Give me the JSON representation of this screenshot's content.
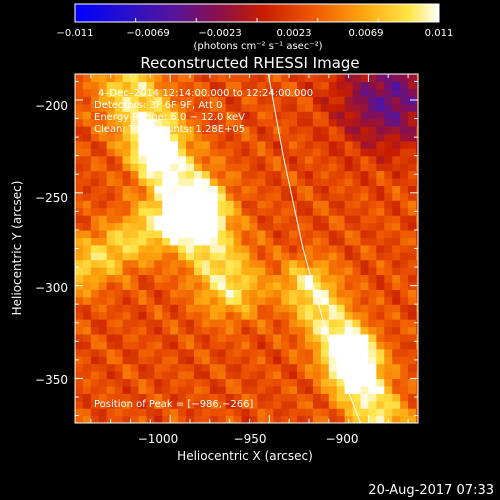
{
  "colors": {
    "background": "#000000",
    "text": "#ffffff",
    "axes": "#ffffff",
    "limb_line": "#ffffff"
  },
  "footer_timestamp": "20-Aug-2017 07:33",
  "chart_data": {
    "type": "heatmap",
    "title": "Reconstructed RHESSI Image",
    "xlabel": "Heliocentric X (arcsec)",
    "ylabel": "Heliocentric Y (arcsec)",
    "xlim": [
      -1048,
      -875
    ],
    "ylim": [
      -374,
      -186
    ],
    "x_ticks": [
      {
        "value": -1000,
        "label": "−1000"
      },
      {
        "value": -950,
        "label": "−950"
      },
      {
        "value": -900,
        "label": "−900"
      }
    ],
    "y_ticks": [
      {
        "value": -200,
        "label": "−200"
      },
      {
        "value": -250,
        "label": "−250"
      },
      {
        "value": -300,
        "label": "−300"
      },
      {
        "value": -350,
        "label": "−350"
      }
    ],
    "colormap": "hot-metal (blue → purple → red → orange → yellow → white)",
    "colorbar": {
      "range": [
        -0.011,
        0.011
      ],
      "tick_labels": [
        "−0.011",
        "−0.0069",
        "−0.0023",
        "0.0023",
        "0.0069",
        "0.011"
      ],
      "units_text": "(photons cm⁻² s⁻¹ asec⁻²)"
    },
    "annotations": [
      "4–Dec–2014 12:14:00.000 to 12:24:00.000",
      "Detectors: 3F 6F 9F, Att 0",
      "Energy Range: 6.0 − 12.0 keV",
      "Clean: Total counts: 1.28E+05",
      "Position of Peak = [−986,−266]"
    ],
    "peak_position": [
      -986,
      -266
    ],
    "solar_limb_curve": [
      [
        -950.5,
        -186
      ],
      [
        -943,
        -230
      ],
      [
        -933,
        -280
      ],
      [
        -920,
        -330
      ],
      [
        -904,
        -374
      ]
    ],
    "features": [
      {
        "type": "bright_source",
        "x": -986,
        "y": -266,
        "sx": 6,
        "sy": 6,
        "amp": 0.011
      },
      {
        "type": "bright_source",
        "x": -1007,
        "y": -225,
        "sx": 7,
        "sy": 9,
        "amp": 0.009
      },
      {
        "type": "bright_source",
        "x": -907,
        "y": -340,
        "sx": 8,
        "sy": 10,
        "amp": 0.009
      },
      {
        "type": "ridge",
        "from": [
          -1020,
          -195
        ],
        "to": [
          -970,
          -300
        ],
        "width": 12,
        "amp": 0.0065
      },
      {
        "type": "ridge",
        "from": [
          -930,
          -300
        ],
        "to": [
          -895,
          -370
        ],
        "width": 10,
        "amp": 0.007
      },
      {
        "type": "ridge",
        "from": [
          -1045,
          -290
        ],
        "to": [
          -985,
          -255
        ],
        "width": 10,
        "amp": 0.0055
      },
      {
        "type": "negative_region",
        "x": -890,
        "y": -200,
        "sx": 18,
        "sy": 18,
        "amp": -0.007
      }
    ],
    "background_level": 0.0028
  }
}
